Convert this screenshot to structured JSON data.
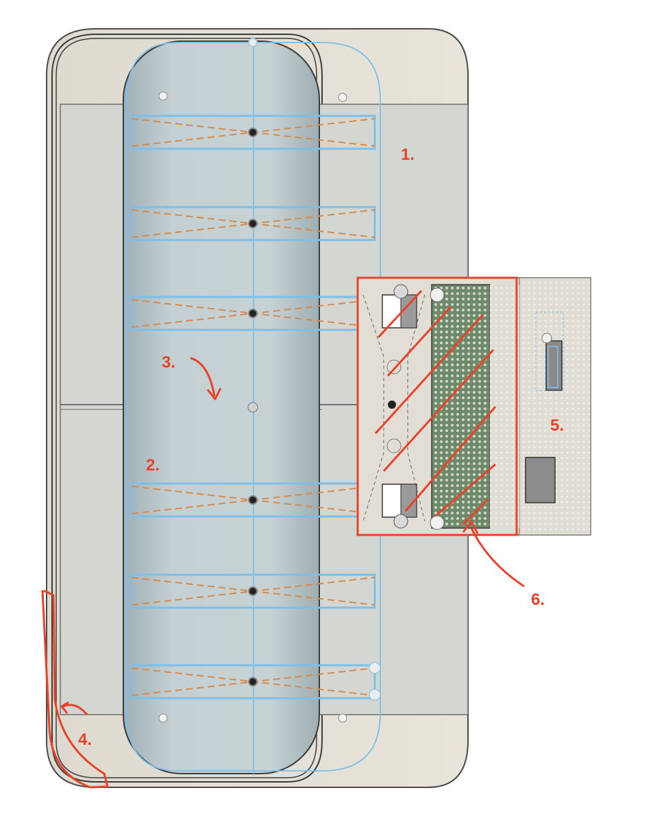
{
  "annotations": [
    {
      "id": "callout-1",
      "label": "1."
    },
    {
      "id": "callout-2",
      "label": "2."
    },
    {
      "id": "callout-3",
      "label": "3."
    },
    {
      "id": "callout-4",
      "label": "4."
    },
    {
      "id": "callout-5",
      "label": "5."
    },
    {
      "id": "callout-6",
      "label": "6."
    }
  ],
  "colors": {
    "annotation": "#e8432a",
    "sketch_line": "#7cc0ea",
    "dashed_construction": "#d98a4a",
    "body_beige": "#e6e1d6",
    "body_shadow": "#c9c6bd",
    "inner_tray": "#b8c6c9",
    "perfboard": "#6f8a6a"
  },
  "icons": [
    "curved-arrow",
    "hatch-cross"
  ]
}
